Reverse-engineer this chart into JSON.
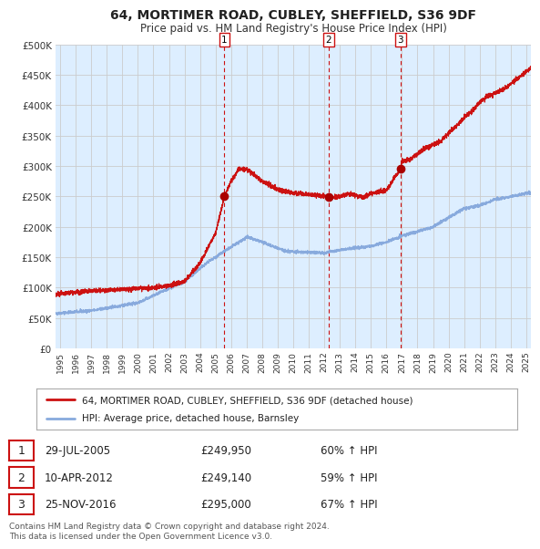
{
  "title": "64, MORTIMER ROAD, CUBLEY, SHEFFIELD, S36 9DF",
  "subtitle": "Price paid vs. HM Land Registry's House Price Index (HPI)",
  "plot_bg_color": "#ddeeff",
  "hpi_line_color": "#88aadd",
  "price_line_color": "#cc1111",
  "sale_marker_color": "#aa0000",
  "sale_dates_decimal": [
    2005.57,
    2012.27,
    2016.9
  ],
  "sale_prices": [
    249950,
    249140,
    295000
  ],
  "sale_labels": [
    "1",
    "2",
    "3"
  ],
  "sale_info": [
    {
      "num": "1",
      "date": "29-JUL-2005",
      "price": "£249,950",
      "hpi": "60% ↑ HPI"
    },
    {
      "num": "2",
      "date": "10-APR-2012",
      "price": "£249,140",
      "hpi": "59% ↑ HPI"
    },
    {
      "num": "3",
      "date": "25-NOV-2016",
      "price": "£295,000",
      "hpi": "67% ↑ HPI"
    }
  ],
  "legend_entries": [
    "64, MORTIMER ROAD, CUBLEY, SHEFFIELD, S36 9DF (detached house)",
    "HPI: Average price, detached house, Barnsley"
  ],
  "footer": "Contains HM Land Registry data © Crown copyright and database right 2024.\nThis data is licensed under the Open Government Licence v3.0.",
  "ylim": [
    0,
    500000
  ],
  "yticks": [
    0,
    50000,
    100000,
    150000,
    200000,
    250000,
    300000,
    350000,
    400000,
    450000,
    500000
  ],
  "xmin": 1994.7,
  "xmax": 2025.3
}
